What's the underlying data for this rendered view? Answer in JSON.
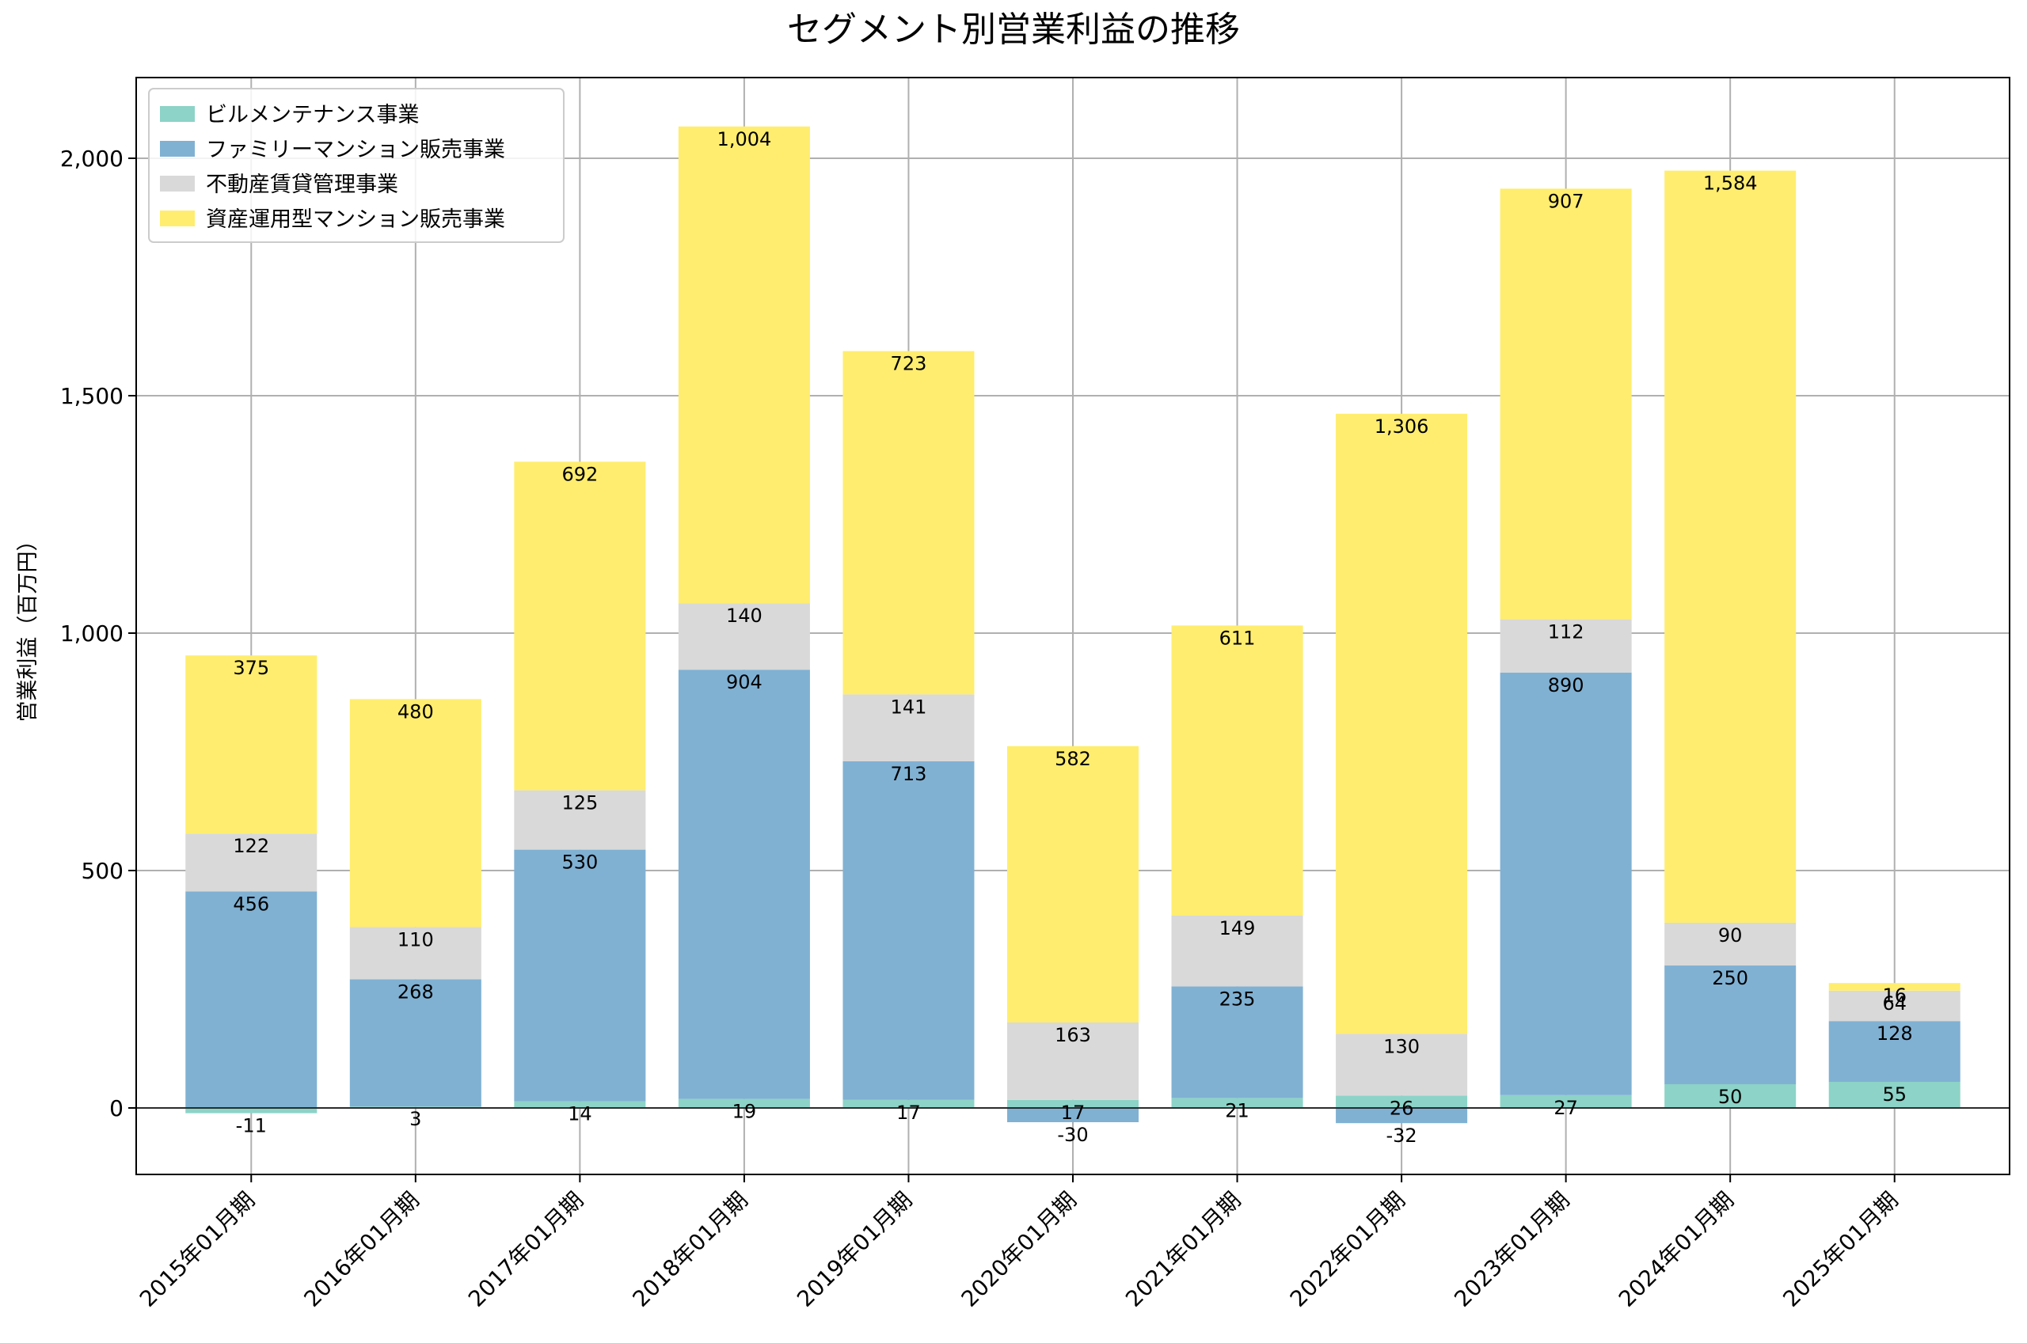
{
  "chart_data": {
    "type": "bar",
    "stacked": true,
    "title": "セグメント別営業利益の推移",
    "xlabel": "",
    "ylabel": "営業利益（百万円）",
    "ylim": [
      -140,
      2170
    ],
    "yticks": [
      0,
      500,
      1000,
      1500,
      2000
    ],
    "ytick_labels": [
      "0",
      "500",
      "1,000",
      "1,500",
      "2,000"
    ],
    "grid": true,
    "legend_position": "top-left",
    "categories": [
      "2015年01月期",
      "2016年01月期",
      "2017年01月期",
      "2018年01月期",
      "2019年01月期",
      "2020年01月期",
      "2021年01月期",
      "2022年01月期",
      "2023年01月期",
      "2024年01月期",
      "2025年01月期"
    ],
    "series": [
      {
        "name": "ビルメンテナンス事業",
        "color": "#8dd3c7",
        "values": [
          -11,
          3,
          14,
          19,
          17,
          17,
          21,
          26,
          27,
          50,
          55
        ]
      },
      {
        "name": "ファミリーマンション販売事業",
        "color": "#80b1d3",
        "values": [
          456,
          268,
          530,
          904,
          713,
          -30,
          235,
          -32,
          890,
          250,
          128
        ]
      },
      {
        "name": "不動産賃貸管理事業",
        "color": "#d9d9d9",
        "values": [
          122,
          110,
          125,
          140,
          141,
          163,
          149,
          130,
          112,
          90,
          64
        ]
      },
      {
        "name": "資産運用型マンション販売事業",
        "color": "#ffed6f",
        "values": [
          375,
          480,
          692,
          1004,
          723,
          582,
          611,
          1306,
          907,
          1584,
          16
        ]
      }
    ]
  }
}
